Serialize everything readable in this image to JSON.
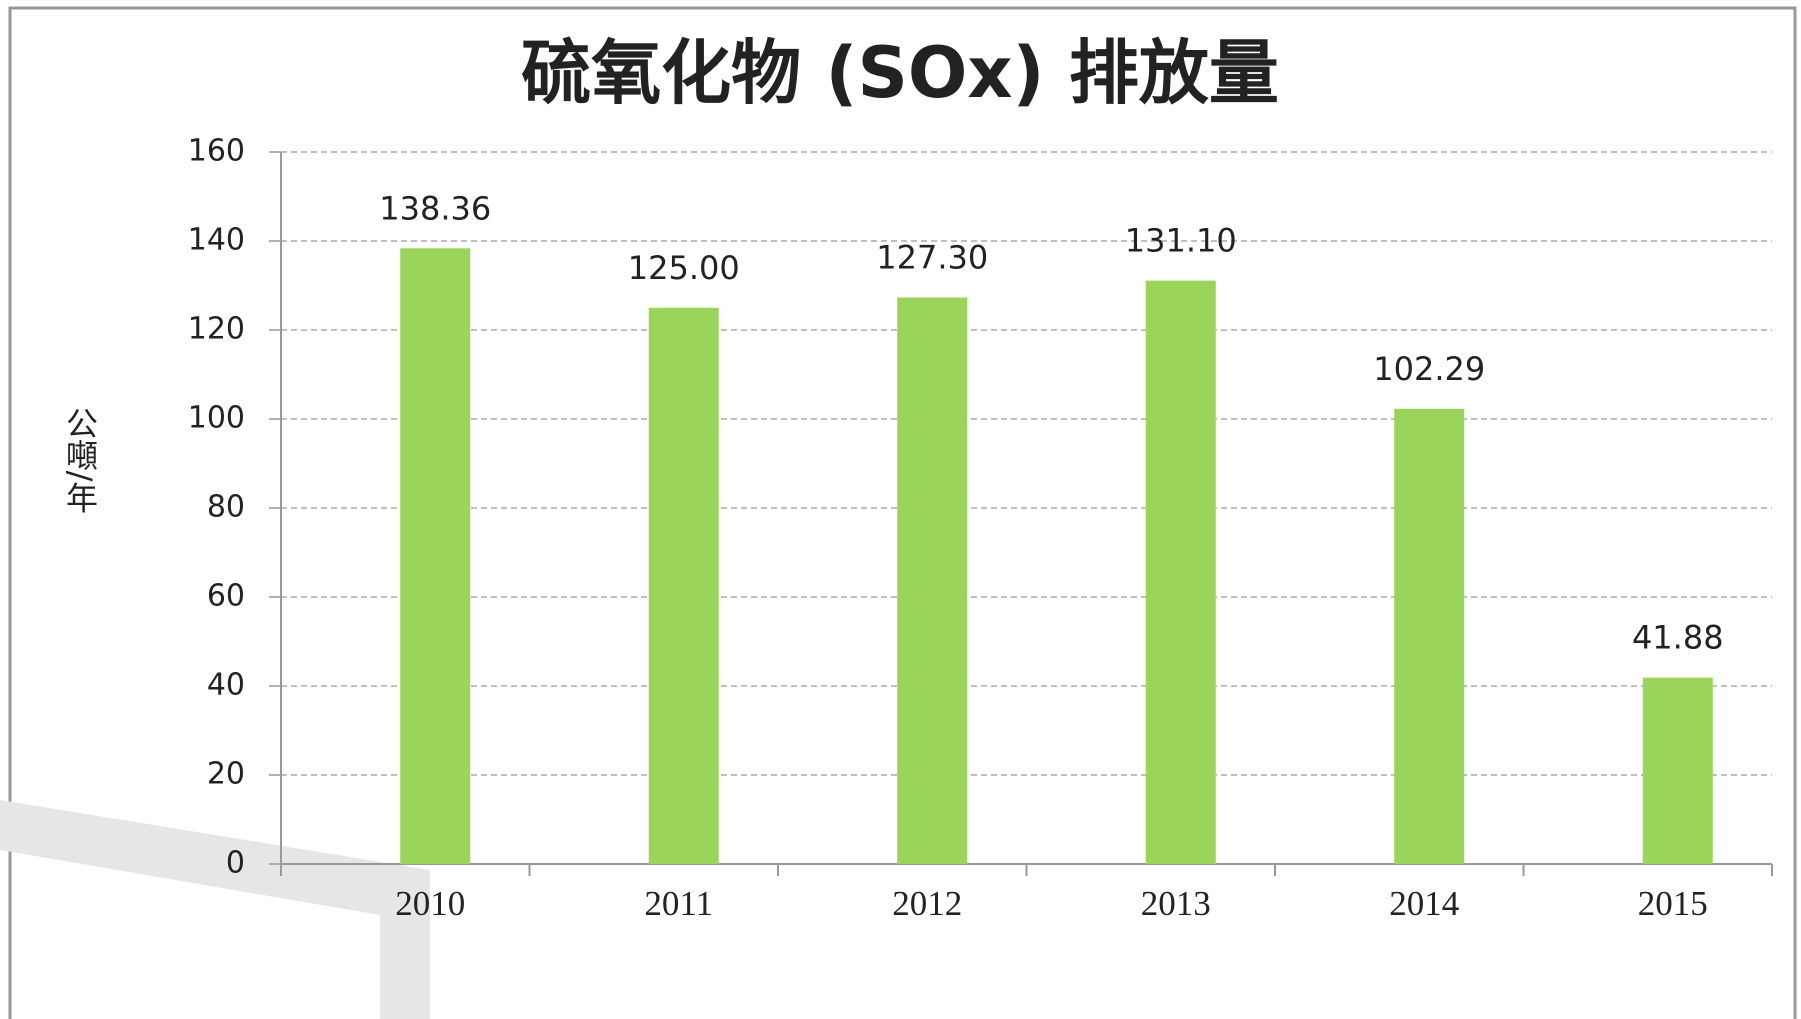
{
  "chart_data": {
    "type": "bar",
    "title": "硫氧化物 (SOx) 排放量",
    "y_label": "公噸/年",
    "categories": [
      "2010",
      "2011",
      "2012",
      "2013",
      "2014",
      "2015"
    ],
    "values": [
      138.36,
      125,
      127.3,
      131.1,
      102.29,
      41.88
    ],
    "value_labels": [
      "138.36",
      "125.00",
      "127.30",
      "131.10",
      "102.29",
      "41.88"
    ],
    "color": "#9bd45a",
    "ylim": [
      0,
      160
    ],
    "yticks": [
      0,
      20,
      40,
      60,
      80,
      100,
      120,
      140,
      160
    ],
    "grid": true
  }
}
